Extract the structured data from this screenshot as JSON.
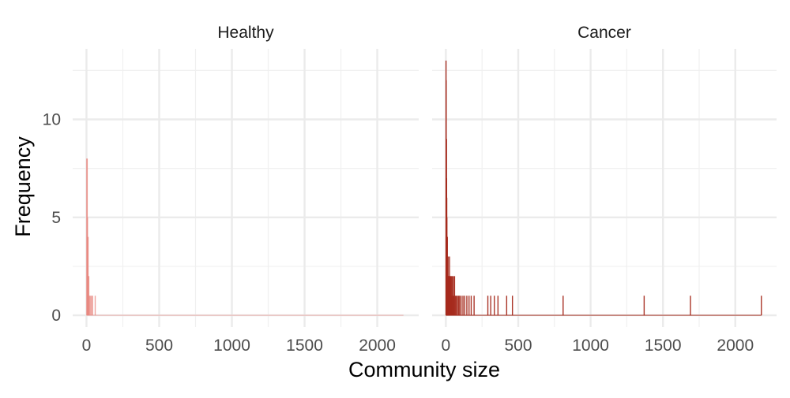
{
  "chart_data": {
    "type": "bar",
    "x_label": "Community size",
    "y_label": "Frequency",
    "x_ticks": [
      0,
      500,
      1000,
      1500,
      2000
    ],
    "y_ticks": [
      0,
      5,
      10
    ],
    "xlim": [
      -95,
      2285
    ],
    "ylim": [
      -0.6,
      13.6
    ],
    "grid": true,
    "panels": [
      {
        "strip": "Healthy",
        "color": "#e8877f",
        "baseline_range": [
          0,
          2180
        ],
        "bars": [
          [
            2,
            8
          ],
          [
            5,
            8
          ],
          [
            7,
            5
          ],
          [
            9,
            4
          ],
          [
            11,
            4
          ],
          [
            13,
            2
          ],
          [
            16,
            2
          ],
          [
            20,
            1
          ],
          [
            26,
            1
          ],
          [
            34,
            1
          ],
          [
            42,
            1
          ],
          [
            60,
            1
          ]
        ]
      },
      {
        "strip": "Cancer",
        "color": "#a52a1c",
        "baseline_range": [
          0,
          2180
        ],
        "bars": [
          [
            1,
            13
          ],
          [
            2,
            12
          ],
          [
            3,
            9
          ],
          [
            4,
            9
          ],
          [
            5,
            7
          ],
          [
            6,
            6
          ],
          [
            7,
            5
          ],
          [
            8,
            4
          ],
          [
            9,
            4
          ],
          [
            10,
            4
          ],
          [
            11,
            3
          ],
          [
            13,
            3
          ],
          [
            15,
            3
          ],
          [
            17,
            2
          ],
          [
            19,
            2
          ],
          [
            21,
            2
          ],
          [
            23,
            2
          ],
          [
            25,
            3
          ],
          [
            28,
            2
          ],
          [
            31,
            2
          ],
          [
            34,
            2
          ],
          [
            37,
            1
          ],
          [
            40,
            2
          ],
          [
            44,
            2
          ],
          [
            48,
            1
          ],
          [
            52,
            2
          ],
          [
            56,
            1
          ],
          [
            60,
            2
          ],
          [
            66,
            1
          ],
          [
            72,
            1
          ],
          [
            80,
            1
          ],
          [
            88,
            1
          ],
          [
            95,
            1
          ],
          [
            105,
            1
          ],
          [
            118,
            1
          ],
          [
            130,
            1
          ],
          [
            145,
            1
          ],
          [
            160,
            1
          ],
          [
            175,
            1
          ],
          [
            195,
            1
          ],
          [
            290,
            1
          ],
          [
            310,
            1
          ],
          [
            335,
            1
          ],
          [
            360,
            1
          ],
          [
            420,
            1
          ],
          [
            460,
            1
          ],
          [
            810,
            1
          ],
          [
            1370,
            1
          ],
          [
            1690,
            1
          ],
          [
            2180,
            1
          ]
        ]
      }
    ]
  }
}
